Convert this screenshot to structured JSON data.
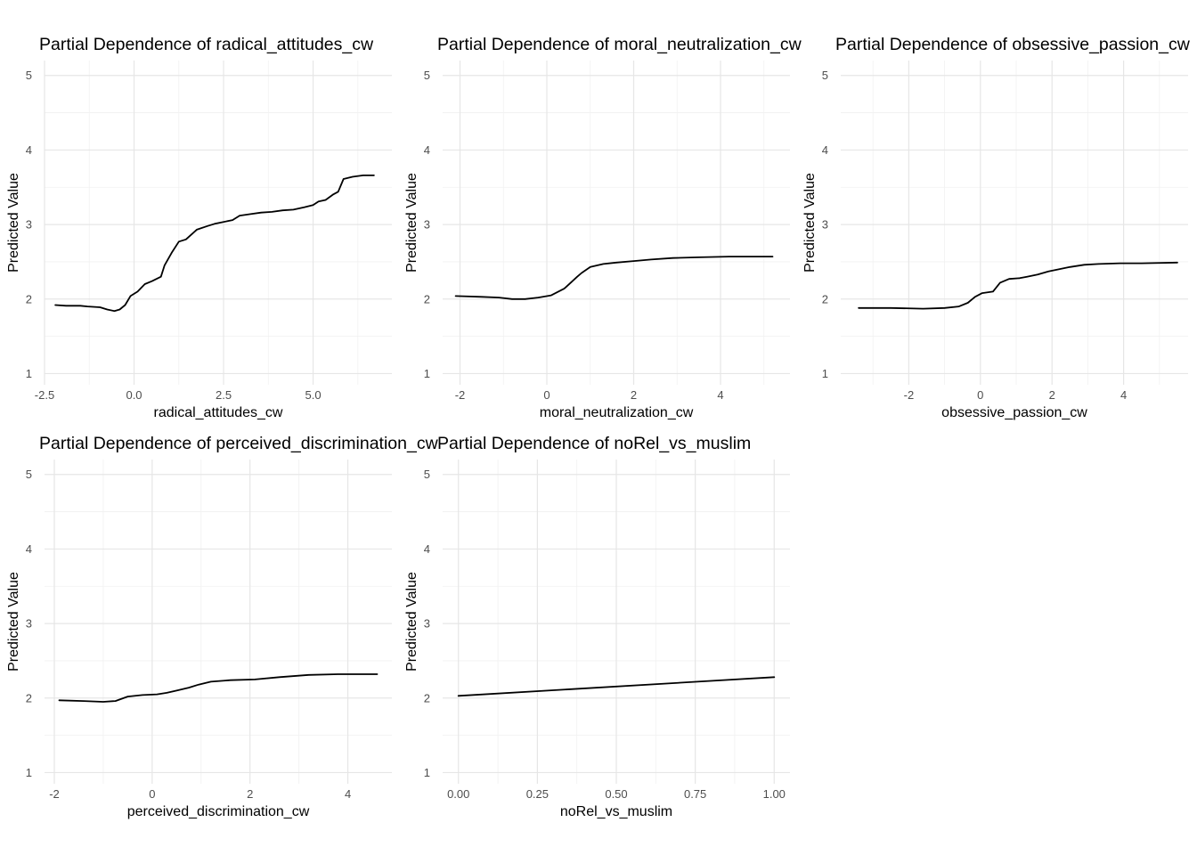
{
  "colors": {
    "background": "#ffffff",
    "grid_major": "#e6e6e6",
    "grid_minor": "#f1f1f1",
    "line": "#000000",
    "tick_text": "#4d4d4d"
  },
  "chart_data": [
    {
      "type": "line",
      "title": "Partial Dependence of radical_attitudes_cw",
      "xlabel": "radical_attitudes_cw",
      "ylabel": "Predicted Value",
      "xlim": [
        -2.5,
        7.2
      ],
      "ylim": [
        0.85,
        5.2
      ],
      "xticks": [
        -2.5,
        0.0,
        2.5,
        5.0
      ],
      "xtick_labels": [
        "-2.5",
        "0.0",
        "2.5",
        "5.0"
      ],
      "yticks": [
        1,
        2,
        3,
        4,
        5
      ],
      "ytick_labels": [
        "1",
        "2",
        "3",
        "4",
        "5"
      ],
      "grid": true,
      "x": [
        -2.2,
        -1.9,
        -1.5,
        -1.3,
        -0.95,
        -0.75,
        -0.55,
        -0.4,
        -0.25,
        -0.1,
        0.1,
        0.3,
        0.5,
        0.75,
        0.85,
        1.05,
        1.25,
        1.45,
        1.75,
        2.05,
        2.25,
        2.45,
        2.75,
        2.95,
        3.25,
        3.55,
        3.85,
        4.15,
        4.45,
        4.75,
        5.0,
        5.15,
        5.35,
        5.55,
        5.7,
        5.85,
        6.1,
        6.4,
        6.7
      ],
      "y": [
        1.92,
        1.91,
        1.91,
        1.9,
        1.89,
        1.86,
        1.84,
        1.86,
        1.92,
        2.04,
        2.1,
        2.2,
        2.24,
        2.3,
        2.45,
        2.62,
        2.77,
        2.8,
        2.93,
        2.98,
        3.01,
        3.03,
        3.06,
        3.12,
        3.14,
        3.16,
        3.17,
        3.19,
        3.2,
        3.23,
        3.26,
        3.31,
        3.33,
        3.4,
        3.44,
        3.61,
        3.64,
        3.66,
        3.66
      ]
    },
    {
      "type": "line",
      "title": "Partial Dependence of moral_neutralization_cw",
      "xlabel": "moral_neutralization_cw",
      "ylabel": "Predicted Value",
      "xlim": [
        -2.4,
        5.6
      ],
      "ylim": [
        0.85,
        5.2
      ],
      "xticks": [
        -2,
        0,
        2,
        4
      ],
      "xtick_labels": [
        "-2",
        "0",
        "2",
        "4"
      ],
      "yticks": [
        1,
        2,
        3,
        4,
        5
      ],
      "ytick_labels": [
        "1",
        "2",
        "3",
        "4",
        "5"
      ],
      "grid": true,
      "x": [
        -2.1,
        -1.5,
        -1.1,
        -0.8,
        -0.5,
        -0.2,
        0.1,
        0.4,
        0.55,
        0.7,
        0.8,
        1.0,
        1.3,
        1.6,
        2.0,
        2.4,
        2.9,
        3.5,
        4.2,
        5.2
      ],
      "y": [
        2.04,
        2.03,
        2.02,
        2.0,
        2.0,
        2.02,
        2.05,
        2.14,
        2.22,
        2.3,
        2.35,
        2.43,
        2.47,
        2.49,
        2.51,
        2.53,
        2.55,
        2.56,
        2.57,
        2.57
      ]
    },
    {
      "type": "line",
      "title": "Partial Dependence of obsessive_passion_cw",
      "xlabel": "obsessive_passion_cw",
      "ylabel": "Predicted Value",
      "xlim": [
        -3.9,
        5.8
      ],
      "ylim": [
        0.85,
        5.2
      ],
      "xticks": [
        -2,
        0,
        2,
        4
      ],
      "xtick_labels": [
        "-2",
        "0",
        "2",
        "4"
      ],
      "yticks": [
        1,
        2,
        3,
        4,
        5
      ],
      "ytick_labels": [
        "1",
        "2",
        "3",
        "4",
        "5"
      ],
      "grid": true,
      "x": [
        -3.4,
        -2.5,
        -1.6,
        -1.0,
        -0.6,
        -0.35,
        -0.15,
        0.05,
        0.35,
        0.55,
        0.8,
        1.1,
        1.3,
        1.6,
        1.9,
        2.2,
        2.5,
        2.9,
        3.3,
        3.9,
        4.5,
        5.5
      ],
      "y": [
        1.88,
        1.88,
        1.87,
        1.88,
        1.9,
        1.95,
        2.03,
        2.08,
        2.1,
        2.22,
        2.27,
        2.28,
        2.3,
        2.33,
        2.37,
        2.4,
        2.43,
        2.46,
        2.47,
        2.48,
        2.48,
        2.49
      ]
    },
    {
      "type": "line",
      "title": "Partial Dependence of perceived_discrimination_cw",
      "xlabel": "perceived_discrimination_cw",
      "ylabel": "Predicted Value",
      "xlim": [
        -2.2,
        4.9
      ],
      "ylim": [
        0.85,
        5.2
      ],
      "xticks": [
        -2,
        0,
        2,
        4
      ],
      "xtick_labels": [
        "-2",
        "0",
        "2",
        "4"
      ],
      "yticks": [
        1,
        2,
        3,
        4,
        5
      ],
      "ytick_labels": [
        "1",
        "2",
        "3",
        "4",
        "5"
      ],
      "grid": true,
      "x": [
        -1.9,
        -1.4,
        -1.0,
        -0.75,
        -0.5,
        -0.2,
        0.1,
        0.3,
        0.5,
        0.75,
        0.95,
        1.2,
        1.6,
        2.1,
        2.6,
        3.2,
        3.8,
        4.6
      ],
      "y": [
        1.97,
        1.96,
        1.95,
        1.96,
        2.02,
        2.04,
        2.05,
        2.07,
        2.1,
        2.14,
        2.18,
        2.22,
        2.24,
        2.25,
        2.28,
        2.31,
        2.32,
        2.32
      ]
    },
    {
      "type": "line",
      "title": "Partial Dependence of noRel_vs_muslim",
      "xlabel": "noRel_vs_muslim",
      "ylabel": "Predicted Value",
      "xlim": [
        -0.05,
        1.05
      ],
      "ylim": [
        0.85,
        5.2
      ],
      "xticks": [
        0.0,
        0.25,
        0.5,
        0.75,
        1.0
      ],
      "xtick_labels": [
        "0.00",
        "0.25",
        "0.50",
        "0.75",
        "1.00"
      ],
      "yticks": [
        1,
        2,
        3,
        4,
        5
      ],
      "ytick_labels": [
        "1",
        "2",
        "3",
        "4",
        "5"
      ],
      "grid": true,
      "x": [
        0.0,
        1.0
      ],
      "y": [
        2.03,
        2.28
      ]
    }
  ]
}
